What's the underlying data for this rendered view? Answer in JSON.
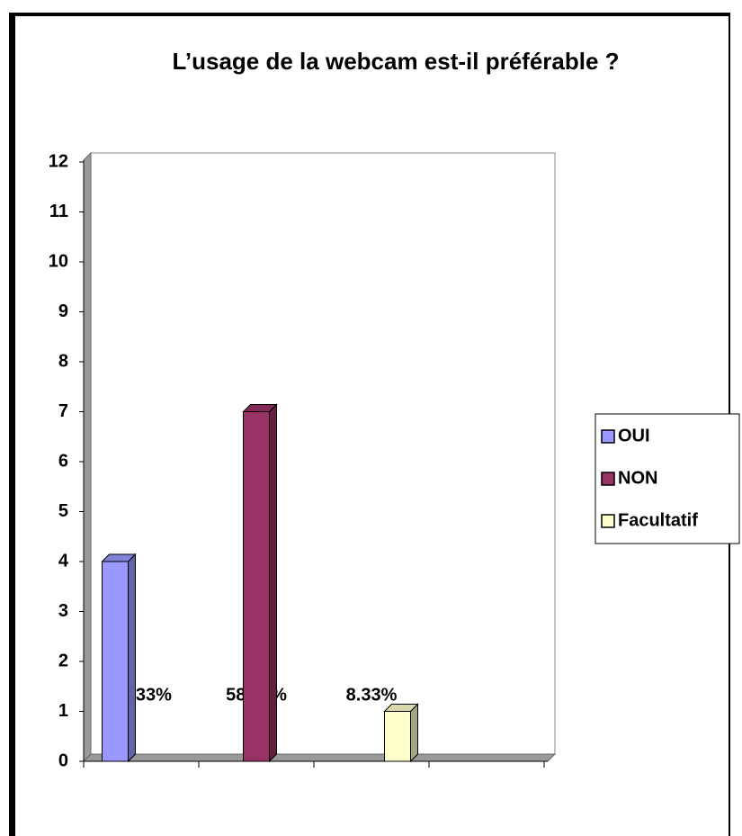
{
  "chart_data": {
    "type": "bar",
    "title": "L’usage de la webcam est-il préférable ?",
    "categories": [
      "33.33%",
      "58.33%",
      "8.33%",
      null
    ],
    "series": [
      {
        "name": "OUI",
        "color": "#9999ff",
        "values": [
          4,
          null,
          null,
          null
        ]
      },
      {
        "name": "NON",
        "color": "#993366",
        "values": [
          null,
          7,
          null,
          null
        ]
      },
      {
        "name": "Facultatif",
        "color": "#ffffcc",
        "values": [
          null,
          null,
          1,
          null
        ]
      }
    ],
    "ylim": [
      0,
      12
    ],
    "yticks": [
      0,
      1,
      2,
      3,
      4,
      5,
      6,
      7,
      8,
      9,
      10,
      11,
      12
    ],
    "legend": "right"
  }
}
